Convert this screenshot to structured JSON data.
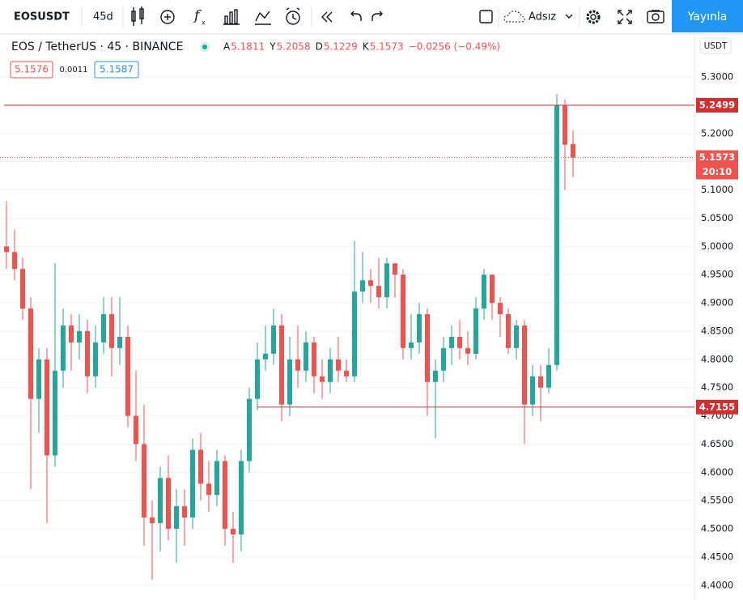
{
  "toolbar": {
    "symbol": "EOSUSDT",
    "interval": "45d",
    "layout_name": "Adsız",
    "publish": "Yayınla"
  },
  "legend": {
    "title": "EOS / TetherUS · 45 · BINANCE",
    "ohlc": [
      {
        "key": "A",
        "value": "5.1811"
      },
      {
        "key": "Y",
        "value": "5.2058"
      },
      {
        "key": "D",
        "value": "5.1229"
      },
      {
        "key": "K",
        "value": "5.1573"
      }
    ],
    "change": "−0.0256 (−0.49%)",
    "bid": "5.1576",
    "spread": "0.0011",
    "ask": "5.1587"
  },
  "currency_button": "USDT",
  "chart_data": {
    "type": "candlestick",
    "up_color": "#26a69a",
    "down_color": "#ef5350",
    "ylim": [
      4.374,
      5.376
    ],
    "yticks": [
      {
        "value": 5.3,
        "label": "5.3000"
      },
      {
        "value": 5.25,
        "label": "5.2500"
      },
      {
        "value": 5.2,
        "label": "5.2000"
      },
      {
        "value": 5.15,
        "label": "5.1500"
      },
      {
        "value": 5.1,
        "label": "5.1000"
      },
      {
        "value": 5.05,
        "label": "5.0500"
      },
      {
        "value": 5.0,
        "label": "5.0000"
      },
      {
        "value": 4.95,
        "label": "4.9500"
      },
      {
        "value": 4.9,
        "label": "4.9000"
      },
      {
        "value": 4.85,
        "label": "4.8500"
      },
      {
        "value": 4.8,
        "label": "4.8000"
      },
      {
        "value": 4.75,
        "label": "4.7500"
      },
      {
        "value": 4.7,
        "label": "4.7000"
      },
      {
        "value": 4.65,
        "label": "4.6500"
      },
      {
        "value": 4.6,
        "label": "4.6000"
      },
      {
        "value": 4.55,
        "label": "4.5500"
      },
      {
        "value": 4.5,
        "label": "4.5000"
      },
      {
        "value": 4.45,
        "label": "4.4500"
      },
      {
        "value": 4.4,
        "label": "4.4000"
      }
    ],
    "grid": true,
    "open": [
      5.0,
      4.99,
      4.96,
      4.89,
      4.73,
      4.8,
      4.63,
      4.78,
      4.86,
      4.83,
      4.85,
      4.77,
      4.83,
      4.88,
      4.82,
      4.84,
      4.7,
      4.65,
      4.52,
      4.51,
      4.59,
      4.5,
      4.54,
      4.52,
      4.64,
      4.58,
      4.56,
      4.62,
      4.5,
      4.49,
      4.62,
      4.73,
      4.8,
      4.81,
      4.86,
      4.72,
      4.8,
      4.78,
      4.83,
      4.77,
      4.76,
      4.8,
      4.78,
      4.77,
      4.92,
      4.94,
      4.93,
      4.91,
      4.97,
      4.95,
      4.82,
      4.83,
      4.88,
      4.76,
      4.78,
      4.82,
      4.84,
      4.82,
      4.81,
      4.89,
      4.95,
      4.9,
      4.88,
      4.82,
      4.86,
      4.72,
      4.77,
      4.75,
      4.79,
      5.25,
      5.1811
    ],
    "high": [
      5.08,
      5.03,
      4.98,
      4.91,
      4.82,
      4.82,
      4.97,
      4.89,
      4.88,
      4.88,
      4.87,
      4.86,
      4.91,
      4.91,
      4.91,
      4.86,
      4.78,
      4.72,
      4.55,
      4.61,
      4.63,
      4.57,
      4.57,
      4.66,
      4.67,
      4.62,
      4.64,
      4.63,
      4.53,
      4.64,
      4.75,
      4.83,
      4.86,
      4.89,
      4.88,
      4.84,
      4.86,
      4.85,
      4.84,
      4.8,
      4.82,
      4.84,
      4.8,
      5.01,
      4.99,
      4.96,
      4.98,
      4.98,
      4.97,
      4.96,
      4.88,
      4.9,
      4.89,
      4.8,
      4.84,
      4.86,
      4.87,
      4.85,
      4.91,
      4.96,
      4.95,
      4.91,
      4.89,
      4.87,
      4.87,
      4.79,
      4.79,
      4.82,
      5.27,
      5.26,
      5.2058
    ],
    "low": [
      4.96,
      4.94,
      4.87,
      4.57,
      4.67,
      4.51,
      4.61,
      4.75,
      4.78,
      4.8,
      4.74,
      4.75,
      4.81,
      4.77,
      4.79,
      4.68,
      4.62,
      4.47,
      4.41,
      4.46,
      4.48,
      4.44,
      4.47,
      4.5,
      4.55,
      4.53,
      4.54,
      4.47,
      4.44,
      4.46,
      4.6,
      4.71,
      4.78,
      4.79,
      4.69,
      4.7,
      4.75,
      4.76,
      4.74,
      4.73,
      4.74,
      4.76,
      4.76,
      4.76,
      4.9,
      4.9,
      4.89,
      4.89,
      4.91,
      4.8,
      4.8,
      4.81,
      4.7,
      4.66,
      4.76,
      4.79,
      4.8,
      4.79,
      4.8,
      4.87,
      4.87,
      4.84,
      4.81,
      4.8,
      4.65,
      4.7,
      4.69,
      4.74,
      4.78,
      5.1,
      5.1229
    ],
    "close": [
      4.99,
      4.96,
      4.89,
      4.73,
      4.8,
      4.63,
      4.78,
      4.86,
      4.83,
      4.85,
      4.77,
      4.83,
      4.88,
      4.82,
      4.84,
      4.7,
      4.65,
      4.52,
      4.51,
      4.59,
      4.5,
      4.54,
      4.52,
      4.64,
      4.58,
      4.56,
      4.62,
      4.5,
      4.49,
      4.62,
      4.73,
      4.8,
      4.81,
      4.86,
      4.72,
      4.8,
      4.78,
      4.83,
      4.77,
      4.76,
      4.8,
      4.78,
      4.77,
      4.92,
      4.94,
      4.93,
      4.91,
      4.97,
      4.95,
      4.82,
      4.83,
      4.88,
      4.76,
      4.78,
      4.82,
      4.84,
      4.82,
      4.81,
      4.89,
      4.95,
      4.9,
      4.88,
      4.82,
      4.86,
      4.72,
      4.77,
      4.75,
      4.79,
      5.25,
      5.18,
      5.1573
    ],
    "hlines": [
      {
        "value": 5.2499,
        "color": "#d32f2f"
      },
      {
        "value": 4.7155,
        "color": "#d32f2f"
      }
    ],
    "last_price": 5.1573,
    "countdown": "20:10"
  }
}
